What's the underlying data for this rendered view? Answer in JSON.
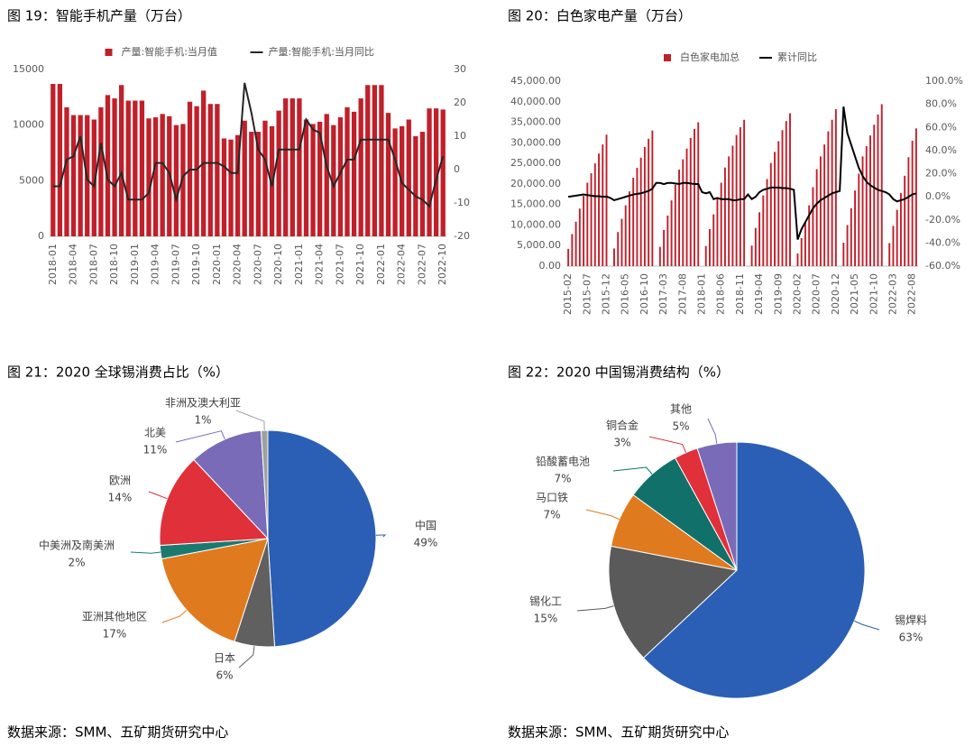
{
  "chart_data": [
    {
      "type": "bar",
      "title": "图 19：智能手机产量（万台）",
      "categories": [
        "2018-01",
        null,
        null,
        "2018-04",
        null,
        null,
        "2018-07",
        null,
        null,
        "2018-10",
        null,
        null,
        "2019-01",
        null,
        null,
        "2019-04",
        null,
        null,
        "2019-07",
        null,
        null,
        "2019-10",
        null,
        null,
        "2020-01",
        null,
        null,
        "2020-04",
        null,
        null,
        "2020-07",
        null,
        null,
        "2020-10",
        null,
        null,
        "2021-01",
        null,
        null,
        "2021-04",
        null,
        null,
        "2021-07",
        null,
        null,
        "2021-10",
        null,
        null,
        "2022-01",
        null,
        null,
        "2022-04",
        null,
        null,
        "2022-07",
        null,
        null,
        "2022-10"
      ],
      "series": [
        {
          "name": "产量:智能手机:当月值",
          "type": "bar",
          "color": "#c0202a",
          "values": [
            13700,
            13700,
            11600,
            10900,
            10900,
            10900,
            10500,
            11600,
            12700,
            12400,
            13600,
            12200,
            12200,
            12200,
            10600,
            10700,
            11000,
            10800,
            10000,
            10100,
            12100,
            11700,
            13100,
            11900,
            11900,
            8800,
            8700,
            9100,
            10400,
            9400,
            9400,
            10400,
            9900,
            11300,
            12400,
            12400,
            12400,
            10500,
            10100,
            10300,
            11000,
            10000,
            10700,
            11600,
            11200,
            12400,
            13600,
            13600,
            13600,
            11100,
            9700,
            9900,
            10500,
            9000,
            9400,
            11500,
            11500,
            11400
          ]
        },
        {
          "name": "产量:智能手机:当月同比",
          "type": "line",
          "axis": "y2",
          "color": "#262626",
          "values": [
            -5,
            -5,
            3,
            4,
            10,
            -3,
            -5,
            8,
            -3,
            -5,
            -1,
            -9,
            -9,
            -9,
            -7,
            2,
            2,
            -1,
            -9,
            -2,
            0,
            0,
            2,
            2,
            2,
            1,
            -1,
            -1,
            26,
            17,
            6,
            3,
            -5,
            6,
            6,
            6,
            6,
            15,
            12,
            11,
            1,
            -5,
            -1,
            3,
            3,
            9,
            9,
            9,
            9,
            9,
            3,
            -4,
            -6,
            -8,
            -9,
            -11,
            -3,
            4
          ]
        }
      ],
      "ylim": [
        0,
        15000
      ],
      "yticks": [
        0,
        5000,
        10000,
        15000
      ],
      "y2lim": [
        -20,
        30
      ],
      "y2ticks": [
        -20,
        -10,
        0,
        10,
        20,
        30
      ],
      "grid": false,
      "bar_width": 0.7
    },
    {
      "type": "bar",
      "title": "图 20：白色家电产量（万台）",
      "categories": [
        "2015-02",
        null,
        null,
        null,
        null,
        "2015-07",
        null,
        null,
        null,
        null,
        "2015-12",
        null,
        null,
        null,
        null,
        "2016-05",
        null,
        null,
        null,
        null,
        "2016-10",
        null,
        null,
        null,
        null,
        "2017-03",
        null,
        null,
        null,
        null,
        "2017-08",
        null,
        null,
        null,
        null,
        "2018-01",
        null,
        null,
        null,
        null,
        "2018-06",
        null,
        null,
        null,
        null,
        "2018-11",
        null,
        null,
        null,
        null,
        "2019-04",
        null,
        null,
        null,
        null,
        "2019-09",
        null,
        null,
        null,
        null,
        "2020-02",
        null,
        null,
        null,
        null,
        "2020-07",
        null,
        null,
        null,
        null,
        "2020-12",
        null,
        null,
        null,
        null,
        "2021-05",
        null,
        null,
        null,
        null,
        "2021-10",
        null,
        null,
        null,
        null,
        "2022-03",
        null,
        null,
        null,
        null,
        "2022-08",
        null
      ],
      "series": [
        {
          "name": "白色家电加总",
          "type": "bar",
          "color": "#c0202a",
          "values": [
            4200,
            7800,
            10800,
            14000,
            17100,
            20300,
            22600,
            25000,
            27400,
            29600,
            32000,
            null,
            4300,
            8300,
            11500,
            14800,
            18200,
            21500,
            23900,
            26400,
            29000,
            31000,
            33000,
            null,
            4700,
            8800,
            12300,
            16000,
            19800,
            23500,
            26000,
            28600,
            31200,
            33400,
            35000,
            null,
            4900,
            9000,
            12600,
            16400,
            20300,
            24000,
            26700,
            29300,
            31900,
            33800,
            35600,
            null,
            5000,
            9300,
            13100,
            17200,
            21200,
            25100,
            27800,
            30400,
            33100,
            35300,
            37200,
            null,
            3100,
            6800,
            10600,
            14800,
            19200,
            23600,
            26700,
            29600,
            32800,
            35600,
            38200,
            null,
            5700,
            10000,
            14100,
            18400,
            22500,
            26700,
            29200,
            31800,
            34400,
            36900,
            39400,
            null,
            5600,
            9800,
            13700,
            17800,
            22000,
            26500,
            30500,
            33500
          ]
        },
        {
          "name": "累计同比",
          "type": "line",
          "axis": "y2",
          "color": "#000000",
          "values": [
            0,
            0.5,
            1,
            1.5,
            2,
            1.5,
            1,
            0.5,
            0.5,
            0,
            0.2,
            -1,
            -3,
            -2,
            -1,
            0,
            1,
            2,
            2.5,
            3,
            4,
            5,
            7,
            12,
            12,
            11,
            12,
            12,
            11.5,
            11,
            12,
            12,
            11.5,
            11,
            11,
            4,
            3,
            4,
            -2,
            -1,
            -2,
            -2,
            -2,
            -3,
            -3,
            -2,
            -2,
            2,
            -2,
            0,
            4,
            6,
            7,
            8,
            8,
            8,
            7.5,
            7.5,
            7,
            6,
            -37,
            -28,
            -22,
            -16,
            -10,
            -6,
            -3,
            -1,
            1,
            3,
            4,
            5,
            78,
            55,
            45,
            35,
            25,
            18,
            13,
            10,
            8,
            6,
            5,
            4,
            2,
            -2,
            -4,
            -3,
            -2,
            0,
            2,
            3
          ]
        }
      ],
      "ylim": [
        0,
        45000
      ],
      "yticks": [
        {
          "value": 0,
          "label": "0.00"
        },
        {
          "value": 5000,
          "label": "5,000.00"
        },
        {
          "value": 10000,
          "label": "10,000.00"
        },
        {
          "value": 15000,
          "label": "15,000.00"
        },
        {
          "value": 20000,
          "label": "20,000.00"
        },
        {
          "value": 25000,
          "label": "25,000.00"
        },
        {
          "value": 30000,
          "label": "30,000.00"
        },
        {
          "value": 35000,
          "label": "35,000.00"
        },
        {
          "value": 40000,
          "label": "40,000.00"
        },
        {
          "value": 45000,
          "label": "45,000.00"
        }
      ],
      "y2lim": [
        -60,
        100
      ],
      "y2ticks": [
        {
          "value": -60,
          "label": "-60.0%"
        },
        {
          "value": -40,
          "label": "-40.0%"
        },
        {
          "value": -20,
          "label": "-20.0%"
        },
        {
          "value": 0,
          "label": "0.0%"
        },
        {
          "value": 20,
          "label": "20.0%"
        },
        {
          "value": 40,
          "label": "40.0%"
        },
        {
          "value": 60,
          "label": "60.0%"
        },
        {
          "value": 80,
          "label": "80.0%"
        },
        {
          "value": 100,
          "label": "100.0%"
        }
      ],
      "grid": false,
      "bar_width": 0.45
    },
    {
      "type": "pie",
      "title": "图 21：2020 全球锡消费占比（%）",
      "categories": [
        "中国",
        "日本",
        "亚洲其他地区",
        "中美洲及南美洲",
        "欧洲",
        "北美",
        "非洲及澳大利亚"
      ],
      "values": [
        49,
        6,
        17,
        2,
        14,
        11,
        1
      ],
      "value_labels": [
        "49%",
        "6%",
        "17%",
        "2%",
        "14%",
        "11%",
        "1%"
      ],
      "colors": [
        "#2a5fb5",
        "#606060",
        "#e07a1f",
        "#1a7a72",
        "#e0303a",
        "#7a6bb8",
        "#a0a0a0"
      ]
    },
    {
      "type": "pie",
      "title": "图 22：2020 中国锡消费结构（%）",
      "categories": [
        "锡焊料",
        "锡化工",
        "马口铁",
        "铅酸蓄电池",
        "铜合金",
        "其他"
      ],
      "values": [
        63,
        15,
        7,
        7,
        3,
        5
      ],
      "value_labels": [
        "63%",
        "15%",
        "7%",
        "7%",
        "3%",
        "5%"
      ],
      "colors": [
        "#2a5fb5",
        "#5a5a5a",
        "#e07a1f",
        "#11706a",
        "#e0303a",
        "#7a6bb8"
      ]
    }
  ],
  "sources": [
    "数据来源：SMM、五矿期货研究中心",
    "数据来源：SMM、五矿期货研究中心"
  ]
}
